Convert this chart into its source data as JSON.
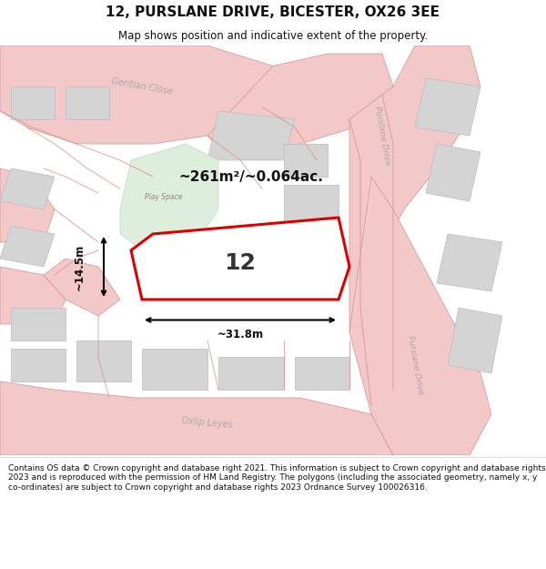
{
  "title": "12, PURSLANE DRIVE, BICESTER, OX26 3EE",
  "subtitle": "Map shows position and indicative extent of the property.",
  "footer": "Contains OS data © Crown copyright and database right 2021. This information is subject to Crown copyright and database rights 2023 and is reproduced with the permission of HM Land Registry. The polygons (including the associated geometry, namely x, y co-ordinates) are subject to Crown copyright and database rights 2023 Ordnance Survey 100026316.",
  "area_text": "~261m²/~0.064ac.",
  "width_text": "~31.8m",
  "height_text": "~14.5m",
  "property_number": "12",
  "road_fill": "#f2c8c8",
  "road_edge": "#d49090",
  "building_fill": "#d4d4d4",
  "building_edge": "#bbbbbb",
  "green_fill": "#ddeedd",
  "green_edge": "#c0d8b8",
  "highlight_color": "#dd0000",
  "prop_fill": "#ffffff",
  "map_bg": "#eeeeee",
  "label_color": "#aaaaaa",
  "title_fs": 11,
  "subtitle_fs": 8.5,
  "footer_fs": 6.5
}
